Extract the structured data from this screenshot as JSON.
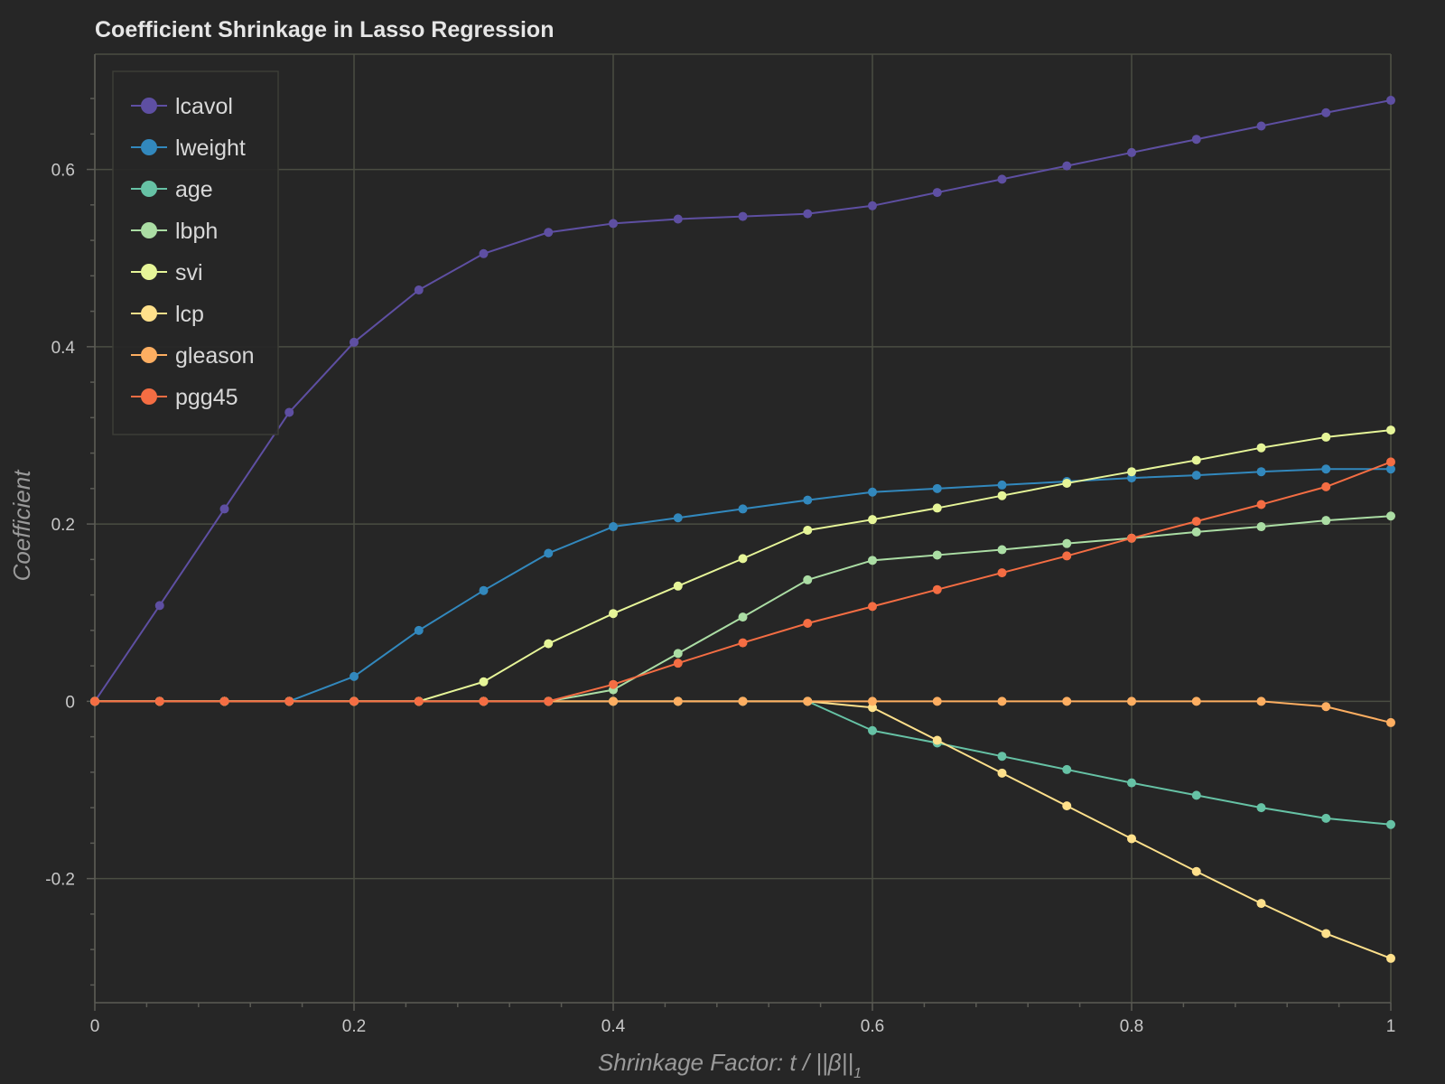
{
  "chart_data": {
    "type": "line",
    "title": "Coefficient Shrinkage in Lasso Regression",
    "xlabel": "Shrinkage Factor: t / ||β||",
    "xlabel_subscript": "1",
    "ylabel": "Coefficient",
    "xlim": [
      0,
      1
    ],
    "ylim": [
      -0.34,
      0.73
    ],
    "x_ticks": [
      0,
      0.2,
      0.4,
      0.6,
      0.8,
      1
    ],
    "x_tick_labels": [
      "0",
      "0.2",
      "0.4",
      "0.6",
      "0.8",
      "1"
    ],
    "y_ticks": [
      -0.2,
      0,
      0.2,
      0.4,
      0.6
    ],
    "y_tick_labels": [
      "-0.2",
      "0",
      "0.2",
      "0.4",
      "0.6"
    ],
    "grid": true,
    "legend_position": "top-left",
    "x": [
      0,
      0.05,
      0.1,
      0.15,
      0.2,
      0.25,
      0.3,
      0.35,
      0.4,
      0.45,
      0.5,
      0.55,
      0.6,
      0.65,
      0.7,
      0.75,
      0.8,
      0.85,
      0.9,
      0.95,
      1.0
    ],
    "series": [
      {
        "name": "lcavol",
        "color": "#5e4fa2",
        "values": [
          0,
          0.108,
          0.217,
          0.326,
          0.405,
          0.464,
          0.505,
          0.529,
          0.539,
          0.544,
          0.547,
          0.55,
          0.559,
          0.574,
          0.589,
          0.604,
          0.619,
          0.634,
          0.649,
          0.664,
          0.678
        ]
      },
      {
        "name": "lweight",
        "color": "#3288bd",
        "values": [
          0,
          0,
          0,
          0,
          0.028,
          0.08,
          0.125,
          0.167,
          0.197,
          0.207,
          0.217,
          0.227,
          0.236,
          0.24,
          0.244,
          0.248,
          0.252,
          0.255,
          0.259,
          0.262,
          0.262
        ]
      },
      {
        "name": "age",
        "color": "#66c2a5",
        "values": [
          0,
          0,
          0,
          0,
          0,
          0,
          0,
          0,
          0,
          0,
          0,
          0,
          -0.033,
          -0.047,
          -0.062,
          -0.077,
          -0.092,
          -0.106,
          -0.12,
          -0.132,
          -0.139
        ]
      },
      {
        "name": "lbph",
        "color": "#abdda4",
        "values": [
          0,
          0,
          0,
          0,
          0,
          0,
          0,
          0,
          0.013,
          0.054,
          0.095,
          0.137,
          0.159,
          0.165,
          0.171,
          0.178,
          0.184,
          0.191,
          0.197,
          0.204,
          0.209
        ]
      },
      {
        "name": "svi",
        "color": "#e6f598",
        "values": [
          0,
          0,
          0,
          0,
          0,
          0,
          0.022,
          0.065,
          0.099,
          0.13,
          0.161,
          0.193,
          0.205,
          0.218,
          0.232,
          0.246,
          0.259,
          0.272,
          0.286,
          0.298,
          0.306
        ]
      },
      {
        "name": "lcp",
        "color": "#fee08b",
        "values": [
          0,
          0,
          0,
          0,
          0,
          0,
          0,
          0,
          0,
          0,
          0,
          0,
          -0.007,
          -0.044,
          -0.081,
          -0.118,
          -0.155,
          -0.192,
          -0.228,
          -0.262,
          -0.29
        ]
      },
      {
        "name": "gleason",
        "color": "#fdae61",
        "values": [
          0,
          0,
          0,
          0,
          0,
          0,
          0,
          0,
          0,
          0,
          0,
          0,
          0,
          0,
          0,
          0,
          0,
          0,
          0,
          -0.006,
          -0.024
        ]
      },
      {
        "name": "pgg45",
        "color": "#f46d43",
        "values": [
          0,
          0,
          0,
          0,
          0,
          0,
          0,
          0,
          0.019,
          0.043,
          0.066,
          0.088,
          0.107,
          0.126,
          0.145,
          0.164,
          0.184,
          0.203,
          0.222,
          0.242,
          0.27
        ]
      }
    ]
  }
}
